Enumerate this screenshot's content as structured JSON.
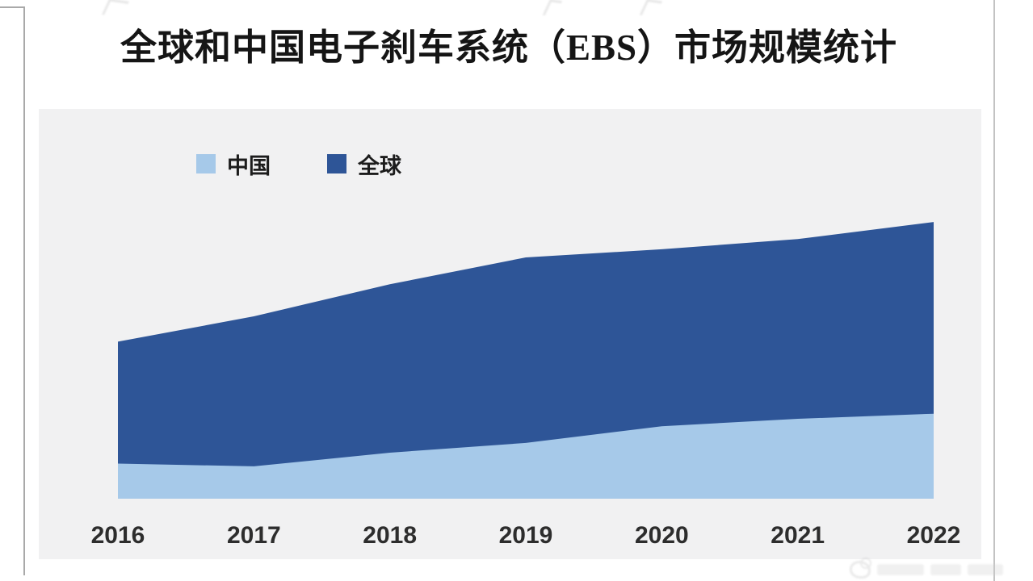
{
  "header": {
    "title": "全球和中国电子刹车系统（EBS）市场规模统计"
  },
  "chart_data": {
    "type": "area",
    "title": "全球和中国电子刹车系统（EBS）市场规模统计",
    "categories": [
      "2016",
      "2017",
      "2018",
      "2019",
      "2020",
      "2021",
      "2022"
    ],
    "series": [
      {
        "name": "全球",
        "color": "#2e5597",
        "values_pct_of_plot_height": [
          40.3,
          46.8,
          55.0,
          61.9,
          64.0,
          66.6,
          71.0
        ]
      },
      {
        "name": "中国",
        "color": "#a6c9e9",
        "values_pct_of_plot_height": [
          9.0,
          8.3,
          11.8,
          14.3,
          18.6,
          20.5,
          21.8
        ]
      }
    ],
    "legend": [
      {
        "label": "中国",
        "color": "#a6c9e9"
      },
      {
        "label": "全球",
        "color": "#2e5597"
      }
    ],
    "legend_position": "top-left",
    "xlabel": "",
    "ylabel": "",
    "y_axis_visible": false,
    "grid": false,
    "plot_background": "#f1f1f2",
    "note": "No y-axis, gridlines or data labels are shown; series values estimated as percent of plot height. 全球 (dark) drawn behind, 中国 (light) in front, both from the baseline."
  }
}
